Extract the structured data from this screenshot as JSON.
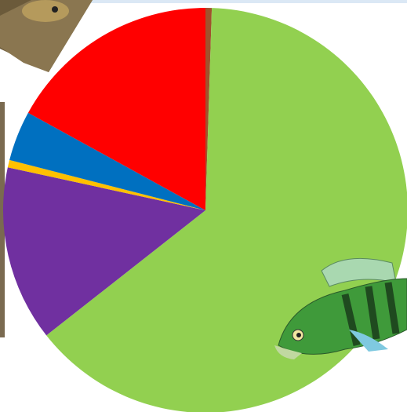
{
  "chart_data": {
    "type": "pie",
    "values": [
      0.5,
      63.9,
      14,
      0.6,
      4,
      17
    ],
    "colors": [
      "#a0522d",
      "#92d050",
      "#7030a0",
      "#ffc000",
      "#0070c0",
      "#ff0000"
    ],
    "start_angle": 0,
    "direction": "clockwise"
  }
}
